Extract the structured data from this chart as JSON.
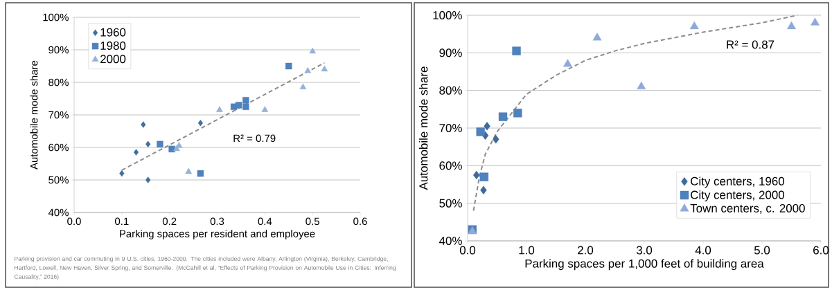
{
  "chart_data": [
    {
      "type": "scatter",
      "xlabel": "Parking spaces per resident and employee",
      "ylabel": "Automobile mode share",
      "xlim": [
        0,
        0.6
      ],
      "xticks": [
        {
          "value": 0,
          "label": "0.0"
        },
        0.1,
        0.2,
        0.3,
        0.4,
        0.5,
        0.6
      ],
      "ylim": [
        40,
        100
      ],
      "yticks": [
        {
          "value": 40,
          "label": "40%"
        },
        {
          "value": 50,
          "label": "50%"
        },
        {
          "value": 60,
          "label": "60%"
        },
        {
          "value": 70,
          "label": "70%"
        },
        {
          "value": 80,
          "label": "80%"
        },
        {
          "value": 90,
          "label": "90%"
        },
        {
          "value": 100,
          "label": "100%"
        }
      ],
      "grid": "y",
      "legend": "top left",
      "annotations": [
        "R² = 0.79",
        "Parking provision and car commuting in 9 U.S. cities, 1960-2000. The cities included were Albany, Arlington (Virginia), Berkeley, Cambridge, Hartford, Lowell, New Haven, Silver Spring, and Somerville. (McCahill et al, “Effects of Parking Provision on Automobile Use in Cities: Inferring Causality,” 2016)"
      ],
      "series": [
        {
          "name": "1960",
          "marker": "diamond",
          "color": "#3f6f9f",
          "x": [
            0.1,
            0.13,
            0.145,
            0.155,
            0.155,
            0.265
          ],
          "values": [
            52,
            58.5,
            67,
            61,
            50,
            67.5
          ]
        },
        {
          "name": "1980",
          "marker": "square",
          "color": "#4f81bd",
          "x": [
            0.18,
            0.205,
            0.265,
            0.335,
            0.345,
            0.36,
            0.36,
            0.45
          ],
          "values": [
            61,
            59.5,
            52,
            72.5,
            73,
            74.5,
            72.5,
            85
          ]
        },
        {
          "name": "2000",
          "marker": "triangle",
          "color": "#95b3d7",
          "x": [
            0.215,
            0.22,
            0.24,
            0.305,
            0.4,
            0.48,
            0.49,
            0.5,
            0.525
          ],
          "values": [
            59.5,
            60.5,
            52.5,
            71.5,
            71.5,
            78.5,
            83.5,
            89.5,
            84
          ]
        },
        {
          "type": "line",
          "line_style": "dashed",
          "marker": "none",
          "color": "#8c8c8c",
          "x": [
            0.1,
            0.525
          ],
          "values": [
            53,
            86
          ]
        }
      ]
    },
    {
      "type": "scatter",
      "xlabel": "Parking spaces per 1,000 feet of building area",
      "ylabel": "Automobile mode share",
      "xlim": [
        0,
        6
      ],
      "xticks": [
        {
          "value": 0,
          "label": "0.0"
        },
        {
          "value": 1,
          "label": "1.0"
        },
        {
          "value": 2,
          "label": "2.0"
        },
        {
          "value": 3,
          "label": "3.0"
        },
        {
          "value": 4,
          "label": "4.0"
        },
        {
          "value": 5,
          "label": "5.0"
        },
        {
          "value": 6,
          "label": "6.0"
        }
      ],
      "ylim": [
        40,
        100
      ],
      "yticks": [
        {
          "value": 40,
          "label": "40%"
        },
        {
          "value": 50,
          "label": "50%"
        },
        {
          "value": 60,
          "label": "60%"
        },
        {
          "value": 70,
          "label": "70%"
        },
        {
          "value": 80,
          "label": "80%"
        },
        {
          "value": 90,
          "label": "90%"
        },
        {
          "value": 100,
          "label": "100%"
        }
      ],
      "grid": "y",
      "legend": "bottom right",
      "annotations": [
        "R² = 0.87"
      ],
      "series": [
        {
          "name": "City centers, 1960",
          "marker": "diamond",
          "color": "#3d6a99",
          "x": [
            0.15,
            0.27,
            0.3,
            0.33,
            0.48
          ],
          "values": [
            57.5,
            53.5,
            68,
            70.5,
            67
          ]
        },
        {
          "name": "City centers, 2000",
          "marker": "square",
          "color": "#4f81bd",
          "x": [
            0.08,
            0.22,
            0.28,
            0.6,
            0.85,
            0.83
          ],
          "values": [
            43,
            69,
            57,
            73,
            74,
            90.5
          ]
        },
        {
          "name": "Town centers, c. 2000",
          "marker": "triangle",
          "color": "#8faad8",
          "x": [
            0.08,
            1.7,
            2.2,
            2.95,
            3.85,
            5.5,
            5.9
          ],
          "values": [
            42.5,
            87,
            94,
            81,
            97,
            97,
            98
          ]
        },
        {
          "type": "line",
          "line_style": "dashed",
          "marker": "none",
          "color": "#8c8c8c",
          "x": [
            0.1,
            0.2,
            0.3,
            0.5,
            0.8,
            1.0,
            1.5,
            2.0,
            2.5,
            3.0,
            4.0,
            5.0,
            5.6
          ],
          "values": [
            48,
            57,
            63,
            69,
            75,
            79,
            84,
            88,
            90.5,
            92.5,
            95.5,
            98,
            100
          ]
        }
      ]
    }
  ]
}
